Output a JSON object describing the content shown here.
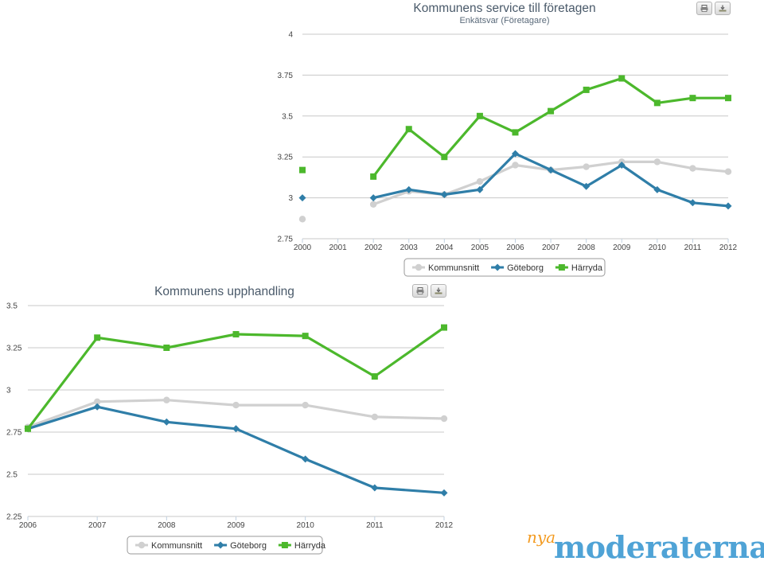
{
  "chart_data": [
    {
      "type": "line",
      "title": "Kommunens service till företagen",
      "subtitle": "Enkätsvar (Företagare)",
      "categories": [
        "2000",
        "2001",
        "2002",
        "2003",
        "2004",
        "2005",
        "2006",
        "2007",
        "2008",
        "2009",
        "2010",
        "2011",
        "2012"
      ],
      "ylim": [
        2.75,
        4
      ],
      "yticks": [
        "2.75",
        "3",
        "3.25",
        "3.5",
        "3.75",
        "4"
      ],
      "grid": true,
      "legend_position": "bottom",
      "series": [
        {
          "name": "Kommunsnitt",
          "color": "#d0d0d0",
          "marker": "circle",
          "values": [
            2.87,
            null,
            2.96,
            3.04,
            3.02,
            3.1,
            3.2,
            3.17,
            3.19,
            3.22,
            3.22,
            3.18,
            3.16
          ]
        },
        {
          "name": "Göteborg",
          "color": "#2f7ea8",
          "marker": "diamond",
          "values": [
            3.0,
            null,
            3.0,
            3.05,
            3.02,
            3.05,
            3.27,
            3.17,
            3.07,
            3.2,
            3.05,
            2.97,
            2.95
          ]
        },
        {
          "name": "Härryda",
          "color": "#4cb82c",
          "marker": "square",
          "values": [
            3.17,
            null,
            3.13,
            3.42,
            3.25,
            3.5,
            3.4,
            3.53,
            3.66,
            3.73,
            3.58,
            3.61,
            3.61
          ]
        }
      ]
    },
    {
      "type": "line",
      "title": "Kommunens upphandling",
      "subtitle": "",
      "categories": [
        "2006",
        "2007",
        "2008",
        "2009",
        "2010",
        "2011",
        "2012"
      ],
      "ylim": [
        2.25,
        3.5
      ],
      "yticks": [
        "2.25",
        "2.5",
        "2.75",
        "3",
        "3.25",
        "3.5"
      ],
      "grid": true,
      "legend_position": "bottom",
      "series": [
        {
          "name": "Kommunsnitt",
          "color": "#d0d0d0",
          "marker": "circle",
          "values": [
            2.78,
            2.93,
            2.94,
            2.91,
            2.91,
            2.84,
            2.83
          ]
        },
        {
          "name": "Göteborg",
          "color": "#2f7ea8",
          "marker": "diamond",
          "values": [
            2.77,
            2.9,
            2.81,
            2.77,
            2.59,
            2.42,
            2.39
          ]
        },
        {
          "name": "Härryda",
          "color": "#4cb82c",
          "marker": "square",
          "values": [
            2.77,
            3.31,
            3.25,
            3.33,
            3.32,
            3.08,
            3.37
          ]
        }
      ]
    }
  ],
  "logo": {
    "small": "nya",
    "main": "moderaterna",
    "color_main": "#4fa3d6",
    "color_small": "#f39a1f"
  },
  "icons": {
    "print": "print-icon",
    "download": "download-icon"
  }
}
